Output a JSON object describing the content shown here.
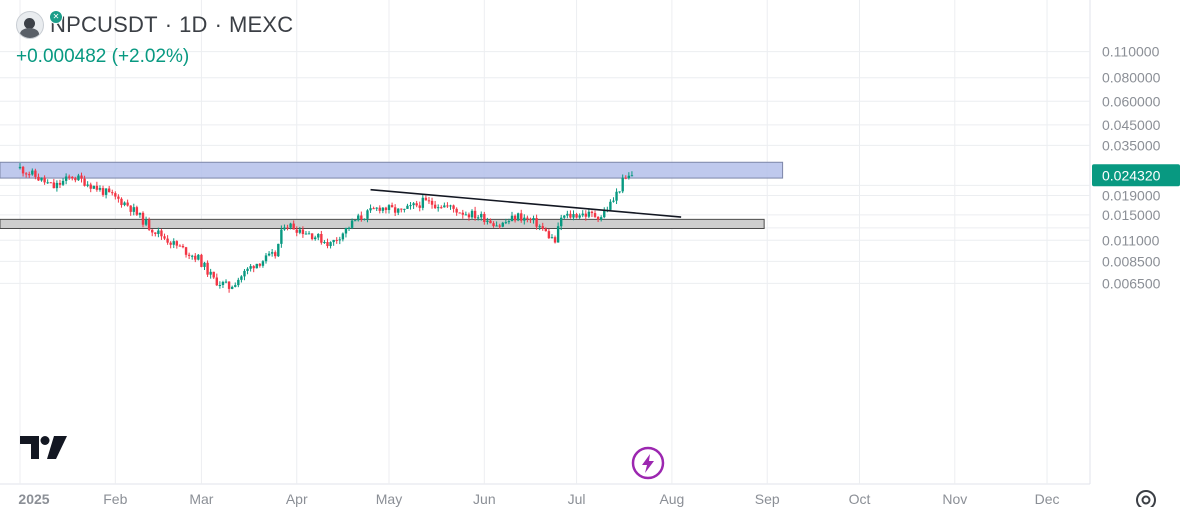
{
  "header": {
    "symbol": "NPCUSDT",
    "interval": "1D",
    "exchange": "MEXC",
    "separator": "·",
    "change": "+0.000482 (+2.02%)"
  },
  "colors": {
    "up": "#089981",
    "down": "#f23645",
    "price_badge": "#089981",
    "resistance_zone": "#b4c0ea",
    "support_zone": "#cbcbcb",
    "grid": "#eceef1",
    "lightning": "#9c27b0"
  },
  "icons": {
    "tv_logo": "tradingview-logo-icon",
    "lightning": "lightning-icon",
    "settings": "gear-icon",
    "symbol_logo": "avatar-icon"
  },
  "chart_data": {
    "type": "candlestick",
    "title": "NPCUSDT · 1D · MEXC",
    "y_scale": "log",
    "y_ticks": [
      "0.110000",
      "0.080000",
      "0.060000",
      "0.045000",
      "0.035000",
      "0.019000",
      "0.015000",
      "0.011000",
      "0.008500",
      "0.006500"
    ],
    "x_ticks": [
      "2025",
      "Feb",
      "Mar",
      "Apr",
      "May",
      "Jun",
      "Jul",
      "Aug",
      "Sep",
      "Oct",
      "Nov",
      "Dec"
    ],
    "last_price": "0.024320",
    "path_anchors": [
      [
        "2025-01-01",
        0.0265
      ],
      [
        "2025-01-05",
        0.0245
      ],
      [
        "2025-01-12",
        0.021
      ],
      [
        "2025-01-18",
        0.024
      ],
      [
        "2025-01-22",
        0.0225
      ],
      [
        "2025-01-28",
        0.02
      ],
      [
        "2025-02-05",
        0.017
      ],
      [
        "2025-02-12",
        0.013
      ],
      [
        "2025-02-20",
        0.0105
      ],
      [
        "2025-02-28",
        0.0088
      ],
      [
        "2025-03-05",
        0.0068
      ],
      [
        "2025-03-10",
        0.0062
      ],
      [
        "2025-03-18",
        0.0082
      ],
      [
        "2025-03-25",
        0.0092
      ],
      [
        "2025-03-28",
        0.0135
      ],
      [
        "2025-04-05",
        0.012
      ],
      [
        "2025-04-12",
        0.0105
      ],
      [
        "2025-04-20",
        0.014
      ],
      [
        "2025-04-28",
        0.0165
      ],
      [
        "2025-05-05",
        0.0155
      ],
      [
        "2025-05-12",
        0.0175
      ],
      [
        "2025-05-18",
        0.017
      ],
      [
        "2025-05-25",
        0.0155
      ],
      [
        "2025-06-01",
        0.0145
      ],
      [
        "2025-06-06",
        0.0132
      ],
      [
        "2025-06-12",
        0.0148
      ],
      [
        "2025-06-18",
        0.0135
      ],
      [
        "2025-06-24",
        0.0108
      ],
      [
        "2025-06-26",
        0.0145
      ],
      [
        "2025-07-02",
        0.0152
      ],
      [
        "2025-07-09",
        0.0148
      ],
      [
        "2025-07-13",
        0.018
      ],
      [
        "2025-07-16",
        0.0225
      ],
      [
        "2025-07-19",
        0.02432
      ]
    ],
    "zones": [
      {
        "name": "resistance",
        "from": "2025-01-01",
        "to": "2025-09-06",
        "low": 0.0235,
        "high": 0.0285
      },
      {
        "name": "support",
        "from": "2025-01-01",
        "to": "2025-08-31",
        "low": 0.0127,
        "high": 0.0142
      }
    ],
    "trendline": {
      "from": [
        "2025-04-25",
        0.0204
      ],
      "to": [
        "2025-08-04",
        0.0146
      ]
    },
    "grid": true
  }
}
